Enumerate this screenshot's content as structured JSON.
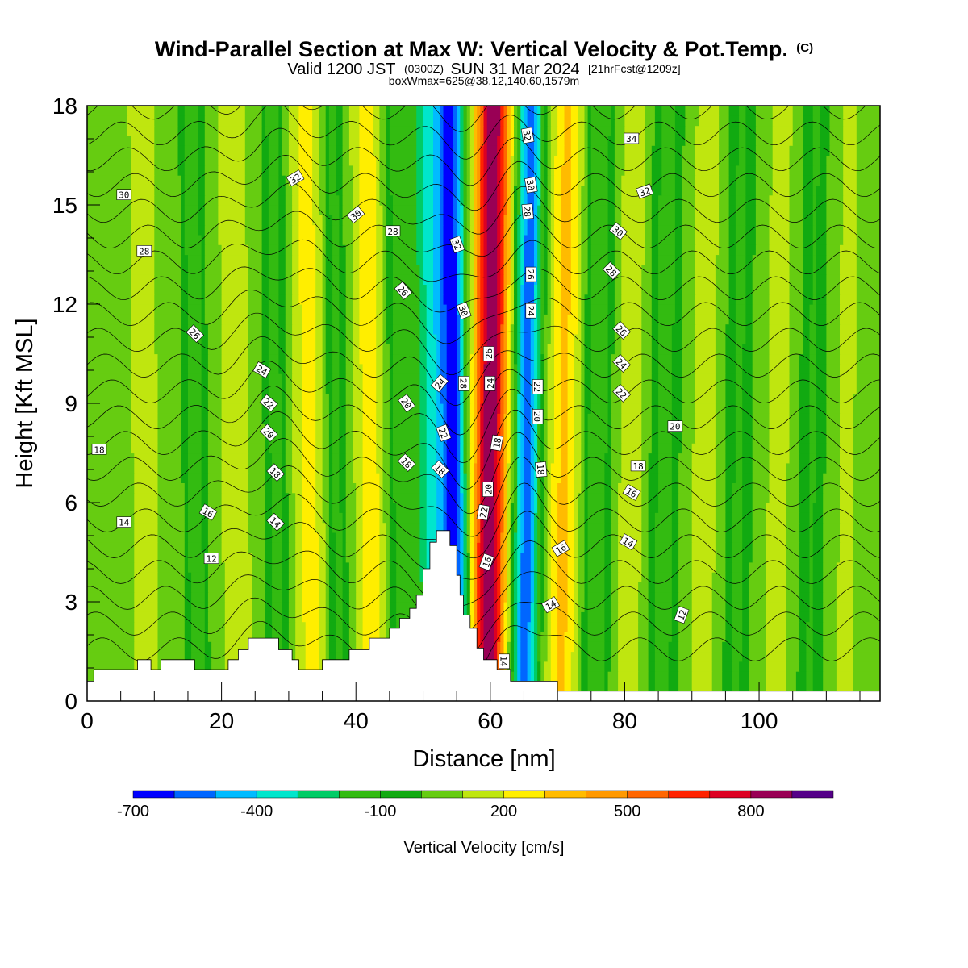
{
  "header": {
    "title": "Wind-Parallel Section at Max W: Vertical Velocity & Pot.Temp.",
    "copyright": "(C)",
    "valid_prefix": "Valid 1200 JST",
    "valid_utc": "(0300Z)",
    "valid_date": "SUN 31 Mar 2024",
    "forecast": "[21hrFcst@1209z]",
    "box_info": "boxWmax=625@38.12,140.60,1579m"
  },
  "chart_data": {
    "type": "heatmap",
    "title": "Wind-Parallel Section at Max W: Vertical Velocity & Pot.Temp.",
    "xlabel": "Distance [nm]",
    "ylabel": "Height [Kft MSL]",
    "xlim": [
      0,
      118
    ],
    "ylim": [
      0,
      18
    ],
    "x_ticks": [
      0,
      20,
      40,
      60,
      80,
      100
    ],
    "x_tick_labels": [
      "0",
      "20",
      "40",
      "60",
      "80",
      "100"
    ],
    "y_ticks": [
      0,
      3,
      6,
      9,
      12,
      15,
      18
    ],
    "y_tick_labels": [
      "0",
      "3",
      "6",
      "9",
      "12",
      "15",
      "18"
    ],
    "colorbar": {
      "label": "Vertical Velocity [cm/s]",
      "levels": [
        -700,
        -600,
        -500,
        -400,
        -300,
        -200,
        -100,
        0,
        100,
        200,
        300,
        400,
        500,
        600,
        700,
        800,
        900
      ],
      "tick_values": [
        -700,
        -400,
        -100,
        200,
        500,
        800
      ],
      "tick_labels": [
        "-700",
        "-400",
        "-100",
        "200",
        "500",
        "800"
      ],
      "colors": [
        "#0000ff",
        "#0066ff",
        "#00bbff",
        "#00e6cc",
        "#00cc66",
        "#33bb11",
        "#11aa11",
        "#66cc11",
        "#bfe60f",
        "#ffee00",
        "#ffbb00",
        "#ff9900",
        "#ff6600",
        "#ff2200",
        "#dd0022",
        "#990055",
        "#550088"
      ]
    },
    "velocity_bands": [
      {
        "x": 4,
        "w": 4.0,
        "v": 60
      },
      {
        "x": 8.5,
        "w": 2.2,
        "v": 140
      },
      {
        "x": 16,
        "w": 1.6,
        "v": -180
      },
      {
        "x": 22,
        "w": 1.8,
        "v": 200
      },
      {
        "x": 28,
        "w": 1.6,
        "v": -150
      },
      {
        "x": 33,
        "w": 2.2,
        "v": 240
      },
      {
        "x": 37,
        "w": 1.5,
        "v": -130
      },
      {
        "x": 42,
        "w": 2.0,
        "v": 260
      },
      {
        "x": 46.5,
        "w": 1.7,
        "v": -160
      },
      {
        "x": 51,
        "w": 2.5,
        "v": -300
      },
      {
        "x": 54.5,
        "w": 2.1,
        "v": -620
      },
      {
        "x": 60,
        "w": 2.6,
        "v": 880
      },
      {
        "x": 65.5,
        "w": 2.0,
        "v": -560
      },
      {
        "x": 71,
        "w": 2.3,
        "v": 320
      },
      {
        "x": 76,
        "w": 2.0,
        "v": -200
      },
      {
        "x": 81,
        "w": 2.3,
        "v": 150
      },
      {
        "x": 86,
        "w": 2.2,
        "v": -150
      },
      {
        "x": 92,
        "w": 2.5,
        "v": 130
      },
      {
        "x": 97,
        "w": 2.0,
        "v": -120
      },
      {
        "x": 103,
        "w": 2.6,
        "v": 120
      },
      {
        "x": 108,
        "w": 2.0,
        "v": -110
      },
      {
        "x": 113,
        "w": 2.6,
        "v": 110
      }
    ],
    "theta_contours": {
      "min": 12,
      "max": 34,
      "step": 1,
      "labeled_values": [
        "12",
        "14",
        "16",
        "18",
        "20",
        "22",
        "24",
        "26",
        "28",
        "30",
        "32",
        "34"
      ]
    },
    "contour_labels": [
      {
        "text": "30",
        "x": 5.5,
        "y": 15.3,
        "rot": 0
      },
      {
        "text": "28",
        "x": 8.5,
        "y": 13.6,
        "rot": 0
      },
      {
        "text": "26",
        "x": 16,
        "y": 11.1,
        "rot": 45
      },
      {
        "text": "24",
        "x": 26,
        "y": 10.0,
        "rot": 30
      },
      {
        "text": "22",
        "x": 27,
        "y": 9.0,
        "rot": 40
      },
      {
        "text": "20",
        "x": 27,
        "y": 8.1,
        "rot": 45
      },
      {
        "text": "18",
        "x": 1.8,
        "y": 7.6,
        "rot": 0
      },
      {
        "text": "18",
        "x": 28,
        "y": 6.9,
        "rot": 45
      },
      {
        "text": "14",
        "x": 5.5,
        "y": 5.4,
        "rot": 0
      },
      {
        "text": "16",
        "x": 18,
        "y": 5.7,
        "rot": 30
      },
      {
        "text": "14",
        "x": 28,
        "y": 5.4,
        "rot": 45
      },
      {
        "text": "12",
        "x": 18.5,
        "y": 4.3,
        "rot": 0
      },
      {
        "text": "32",
        "x": 31,
        "y": 15.8,
        "rot": -30
      },
      {
        "text": "30",
        "x": 40,
        "y": 14.7,
        "rot": -40
      },
      {
        "text": "28",
        "x": 45.5,
        "y": 14.2,
        "rot": 0
      },
      {
        "text": "26",
        "x": 47,
        "y": 12.4,
        "rot": 50
      },
      {
        "text": "20",
        "x": 47.5,
        "y": 9.0,
        "rot": 55
      },
      {
        "text": "18",
        "x": 47.5,
        "y": 7.2,
        "rot": 45
      },
      {
        "text": "24",
        "x": 52.5,
        "y": 9.6,
        "rot": -50
      },
      {
        "text": "22",
        "x": 53,
        "y": 8.1,
        "rot": 70
      },
      {
        "text": "18",
        "x": 52.5,
        "y": 7.0,
        "rot": 45
      },
      {
        "text": "32",
        "x": 55,
        "y": 13.8,
        "rot": 70
      },
      {
        "text": "30",
        "x": 56,
        "y": 11.8,
        "rot": 70
      },
      {
        "text": "28",
        "x": 56,
        "y": 9.6,
        "rot": 90
      },
      {
        "text": "26",
        "x": 59.8,
        "y": 10.5,
        "rot": -90
      },
      {
        "text": "24",
        "x": 60,
        "y": 9.6,
        "rot": -90
      },
      {
        "text": "18",
        "x": 61,
        "y": 7.8,
        "rot": -80
      },
      {
        "text": "20",
        "x": 59.7,
        "y": 6.4,
        "rot": -90
      },
      {
        "text": "22",
        "x": 59,
        "y": 5.7,
        "rot": -80
      },
      {
        "text": "16",
        "x": 59.5,
        "y": 4.2,
        "rot": -70
      },
      {
        "text": "14",
        "x": 62,
        "y": 1.2,
        "rot": 90
      },
      {
        "text": "32",
        "x": 65.5,
        "y": 17.1,
        "rot": 80
      },
      {
        "text": "30",
        "x": 66,
        "y": 15.6,
        "rot": 80
      },
      {
        "text": "28",
        "x": 65.5,
        "y": 14.8,
        "rot": 85
      },
      {
        "text": "26",
        "x": 66,
        "y": 12.9,
        "rot": 90
      },
      {
        "text": "24",
        "x": 66,
        "y": 11.8,
        "rot": 90
      },
      {
        "text": "22",
        "x": 67,
        "y": 9.5,
        "rot": 90
      },
      {
        "text": "20",
        "x": 67,
        "y": 8.6,
        "rot": 90
      },
      {
        "text": "18",
        "x": 67.5,
        "y": 7.0,
        "rot": 85
      },
      {
        "text": "16",
        "x": 70.5,
        "y": 4.6,
        "rot": -30
      },
      {
        "text": "14",
        "x": 69,
        "y": 2.9,
        "rot": -30
      },
      {
        "text": "34",
        "x": 81,
        "y": 17.0,
        "rot": 0
      },
      {
        "text": "32",
        "x": 83,
        "y": 15.4,
        "rot": -20
      },
      {
        "text": "30",
        "x": 79,
        "y": 14.2,
        "rot": 40
      },
      {
        "text": "28",
        "x": 78,
        "y": 13.0,
        "rot": 45
      },
      {
        "text": "26",
        "x": 79.5,
        "y": 11.2,
        "rot": 45
      },
      {
        "text": "24",
        "x": 79.5,
        "y": 10.2,
        "rot": 45
      },
      {
        "text": "22",
        "x": 79.5,
        "y": 9.3,
        "rot": 45
      },
      {
        "text": "20",
        "x": 87.5,
        "y": 8.3,
        "rot": 0
      },
      {
        "text": "18",
        "x": 82,
        "y": 7.1,
        "rot": 0
      },
      {
        "text": "16",
        "x": 81,
        "y": 6.3,
        "rot": 30
      },
      {
        "text": "14",
        "x": 80.5,
        "y": 4.8,
        "rot": 30
      },
      {
        "text": "12",
        "x": 88.5,
        "y": 2.6,
        "rot": -70
      }
    ],
    "terrain": [
      [
        0,
        0.6
      ],
      [
        1,
        0.6
      ],
      [
        1,
        0.95
      ],
      [
        7.5,
        0.95
      ],
      [
        7.5,
        1.25
      ],
      [
        9.5,
        1.25
      ],
      [
        9.5,
        0.95
      ],
      [
        11,
        0.95
      ],
      [
        11,
        1.25
      ],
      [
        16,
        1.25
      ],
      [
        16,
        0.95
      ],
      [
        21,
        0.95
      ],
      [
        21,
        1.25
      ],
      [
        22.5,
        1.25
      ],
      [
        22.5,
        1.55
      ],
      [
        24,
        1.55
      ],
      [
        24,
        1.9
      ],
      [
        28.5,
        1.9
      ],
      [
        28.5,
        1.55
      ],
      [
        30.5,
        1.55
      ],
      [
        30.5,
        1.25
      ],
      [
        31.5,
        1.25
      ],
      [
        31.5,
        0.95
      ],
      [
        35,
        0.95
      ],
      [
        35,
        1.25
      ],
      [
        39,
        1.25
      ],
      [
        39,
        1.55
      ],
      [
        42,
        1.55
      ],
      [
        42,
        1.9
      ],
      [
        45,
        1.9
      ],
      [
        45,
        2.2
      ],
      [
        46.5,
        2.2
      ],
      [
        46.5,
        2.5
      ],
      [
        48,
        2.5
      ],
      [
        48,
        2.8
      ],
      [
        49,
        2.8
      ],
      [
        49,
        3.2
      ],
      [
        50,
        3.2
      ],
      [
        50,
        4.0
      ],
      [
        51,
        4.0
      ],
      [
        51,
        4.8
      ],
      [
        52,
        4.8
      ],
      [
        52,
        5.15
      ],
      [
        54,
        5.15
      ],
      [
        54,
        4.7
      ],
      [
        55,
        4.7
      ],
      [
        55,
        3.8
      ],
      [
        55.5,
        3.8
      ],
      [
        55.5,
        3.2
      ],
      [
        56,
        3.2
      ],
      [
        56,
        2.6
      ],
      [
        57,
        2.6
      ],
      [
        57,
        2.2
      ],
      [
        58,
        2.2
      ],
      [
        58,
        1.6
      ],
      [
        59,
        1.6
      ],
      [
        59,
        1.25
      ],
      [
        61,
        1.25
      ],
      [
        61,
        0.95
      ],
      [
        63,
        0.95
      ],
      [
        63,
        0.6
      ],
      [
        70,
        0.6
      ],
      [
        70,
        0.3
      ],
      [
        118,
        0.3
      ]
    ]
  }
}
